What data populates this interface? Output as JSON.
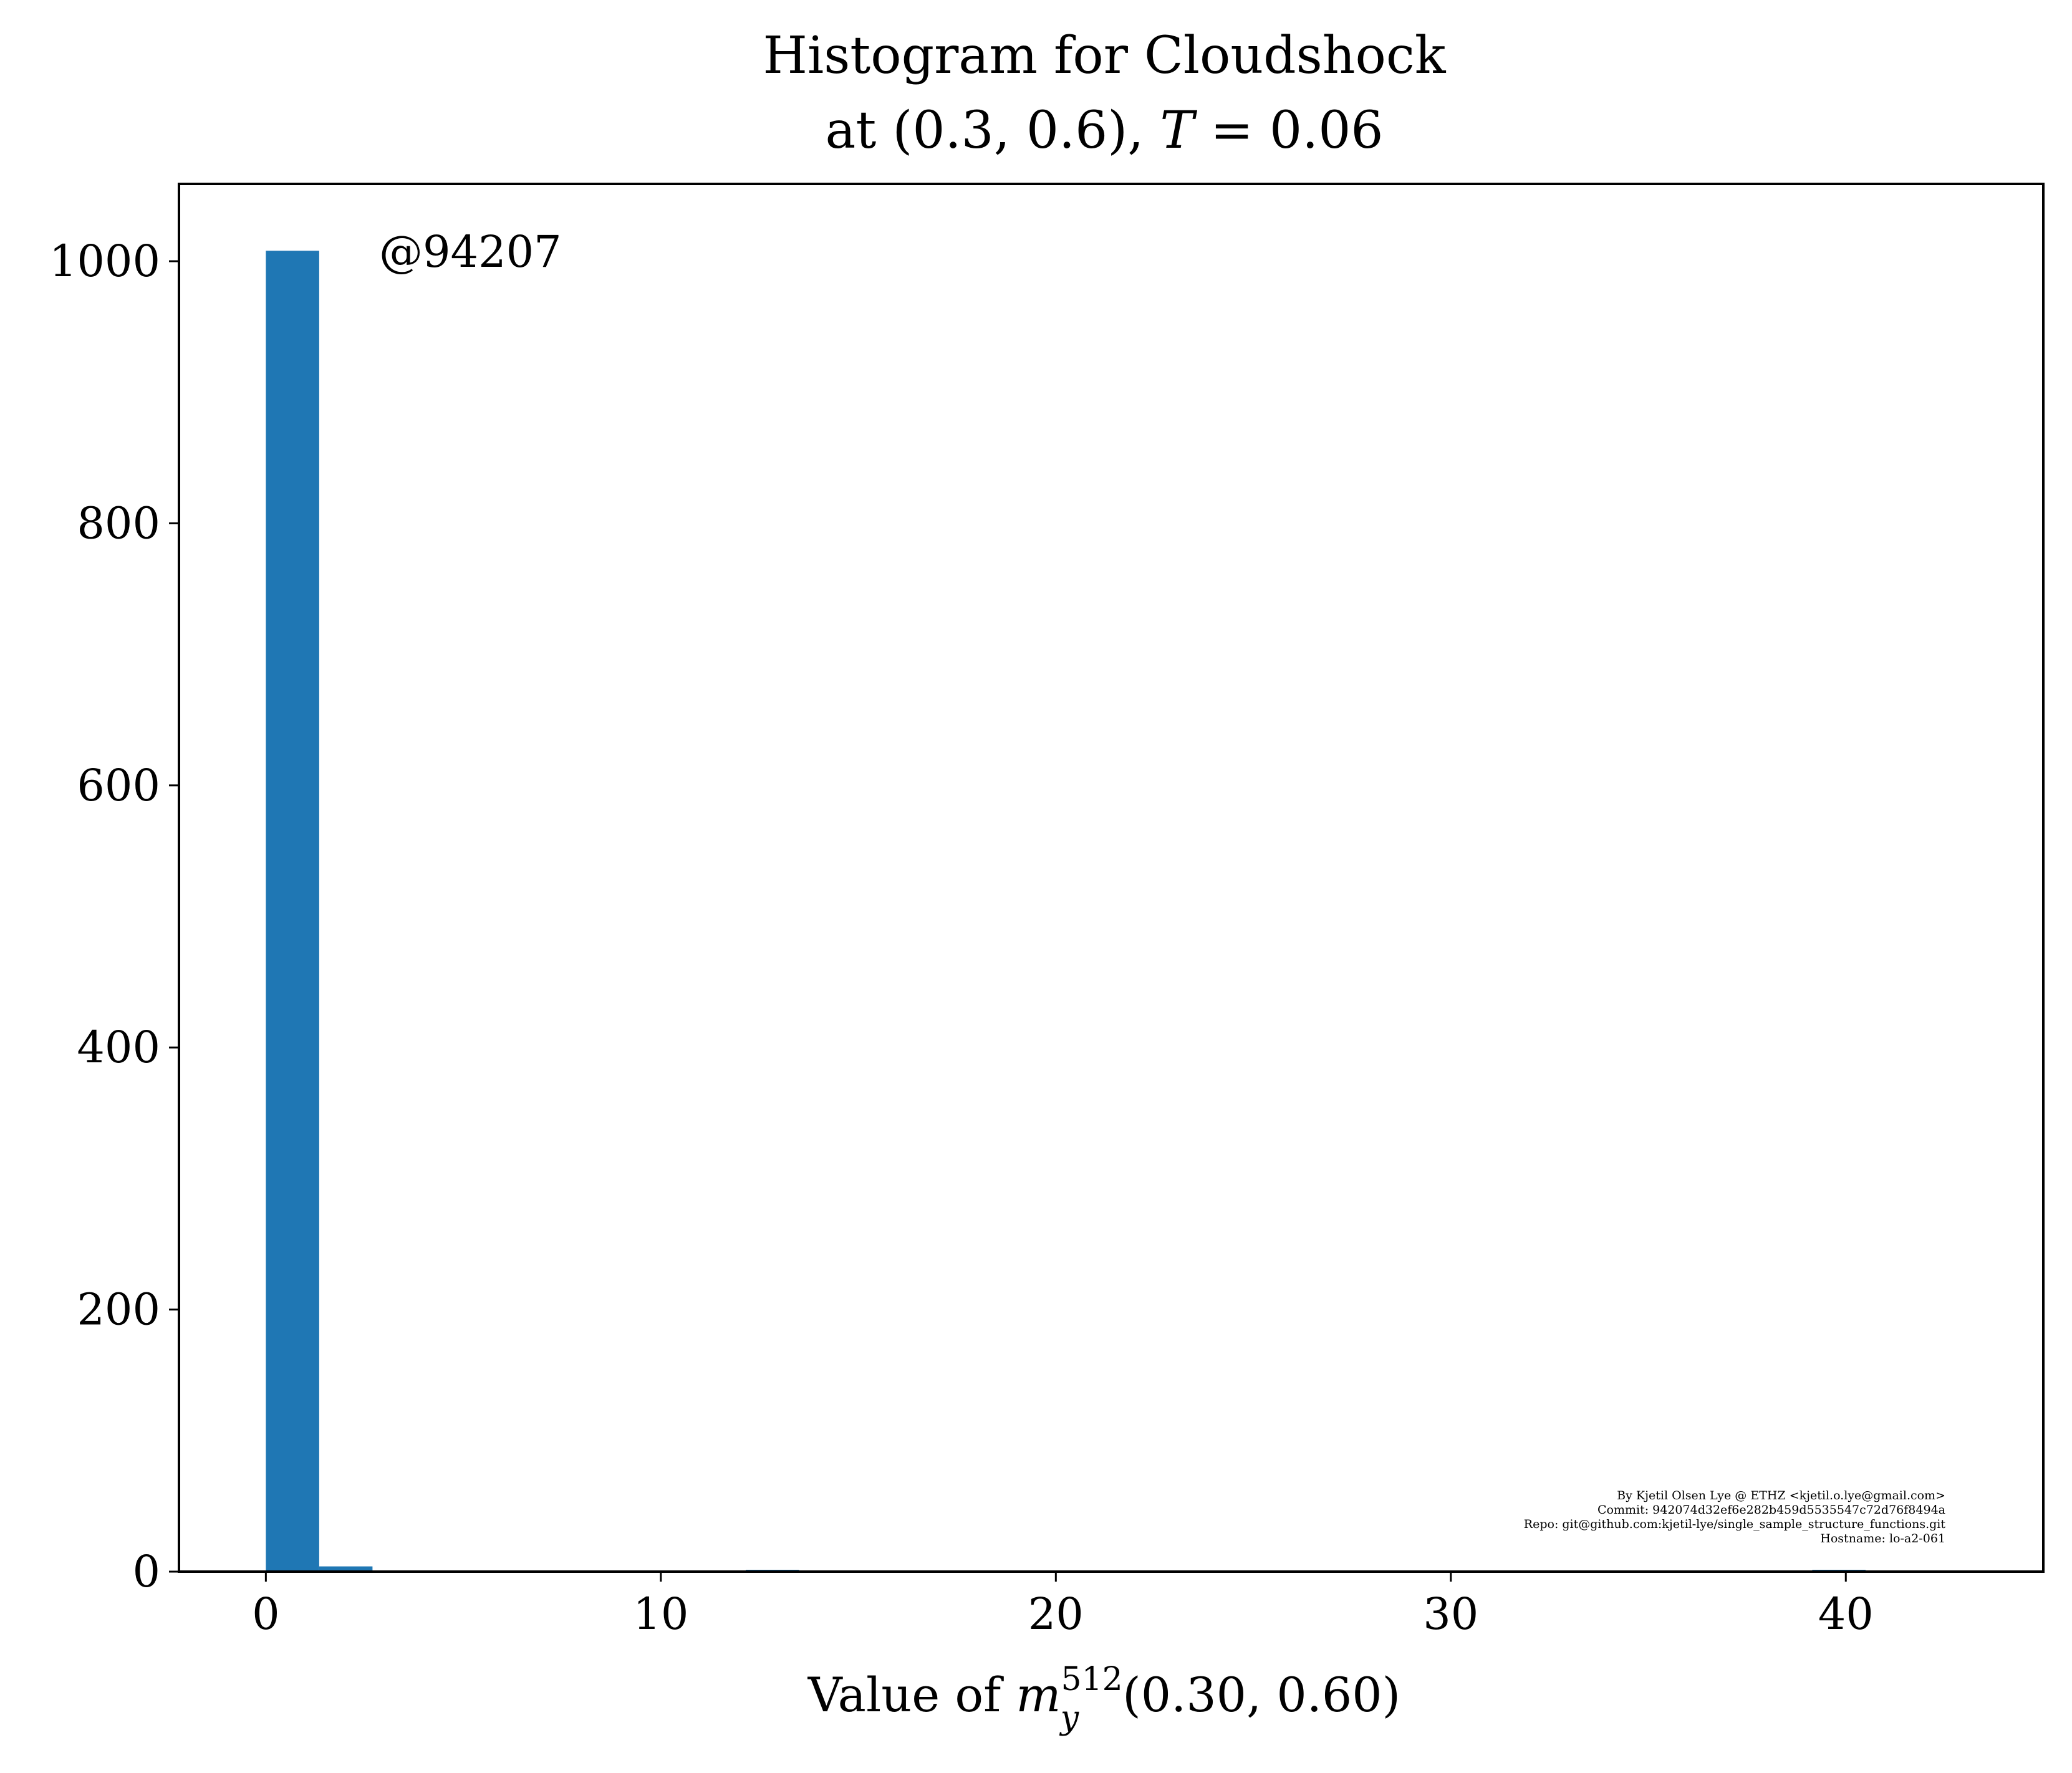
{
  "colors": {
    "bar": "#1f77b4",
    "watermark": "#bdbdbd",
    "signature": "#b0b0b0",
    "axis": "#000000"
  },
  "chart_data": {
    "type": "bar",
    "title": "Histogram for Cloudshock",
    "subtitle_parts": [
      "at (0.3, 0.6), ",
      "T",
      " = 0.06"
    ],
    "xlabel_parts": [
      "Value of ",
      "m",
      "512",
      "y",
      "(0.30, 0.60)"
    ],
    "ylabel": "",
    "xlim": [
      -2.2,
      45.0
    ],
    "ylim": [
      0,
      1059
    ],
    "xticks": [
      0,
      10,
      20,
      30,
      40
    ],
    "yticks": [
      0,
      200,
      400,
      600,
      800,
      1000
    ],
    "grid": false,
    "legend": "none",
    "bins": [
      {
        "x0": 0.0,
        "x1": 1.35,
        "count": 1008
      },
      {
        "x0": 1.35,
        "x1": 2.7,
        "count": 4
      },
      {
        "x0": 12.15,
        "x1": 13.5,
        "count": 1
      },
      {
        "x0": 39.15,
        "x1": 40.5,
        "count": 1
      }
    ],
    "annotations": {
      "watermark": "@94207",
      "signature": [
        "By Kjetil Olsen Lye @ ETHZ <kjetil.o.lye@gmail.com>",
        "Commit: 942074d32ef6e282b459d5535547c72d76f8494a",
        "Repo: git@github.com:kjetil-lye/single_sample_structure_functions.git",
        "Hostname: lo-a2-061"
      ]
    }
  }
}
